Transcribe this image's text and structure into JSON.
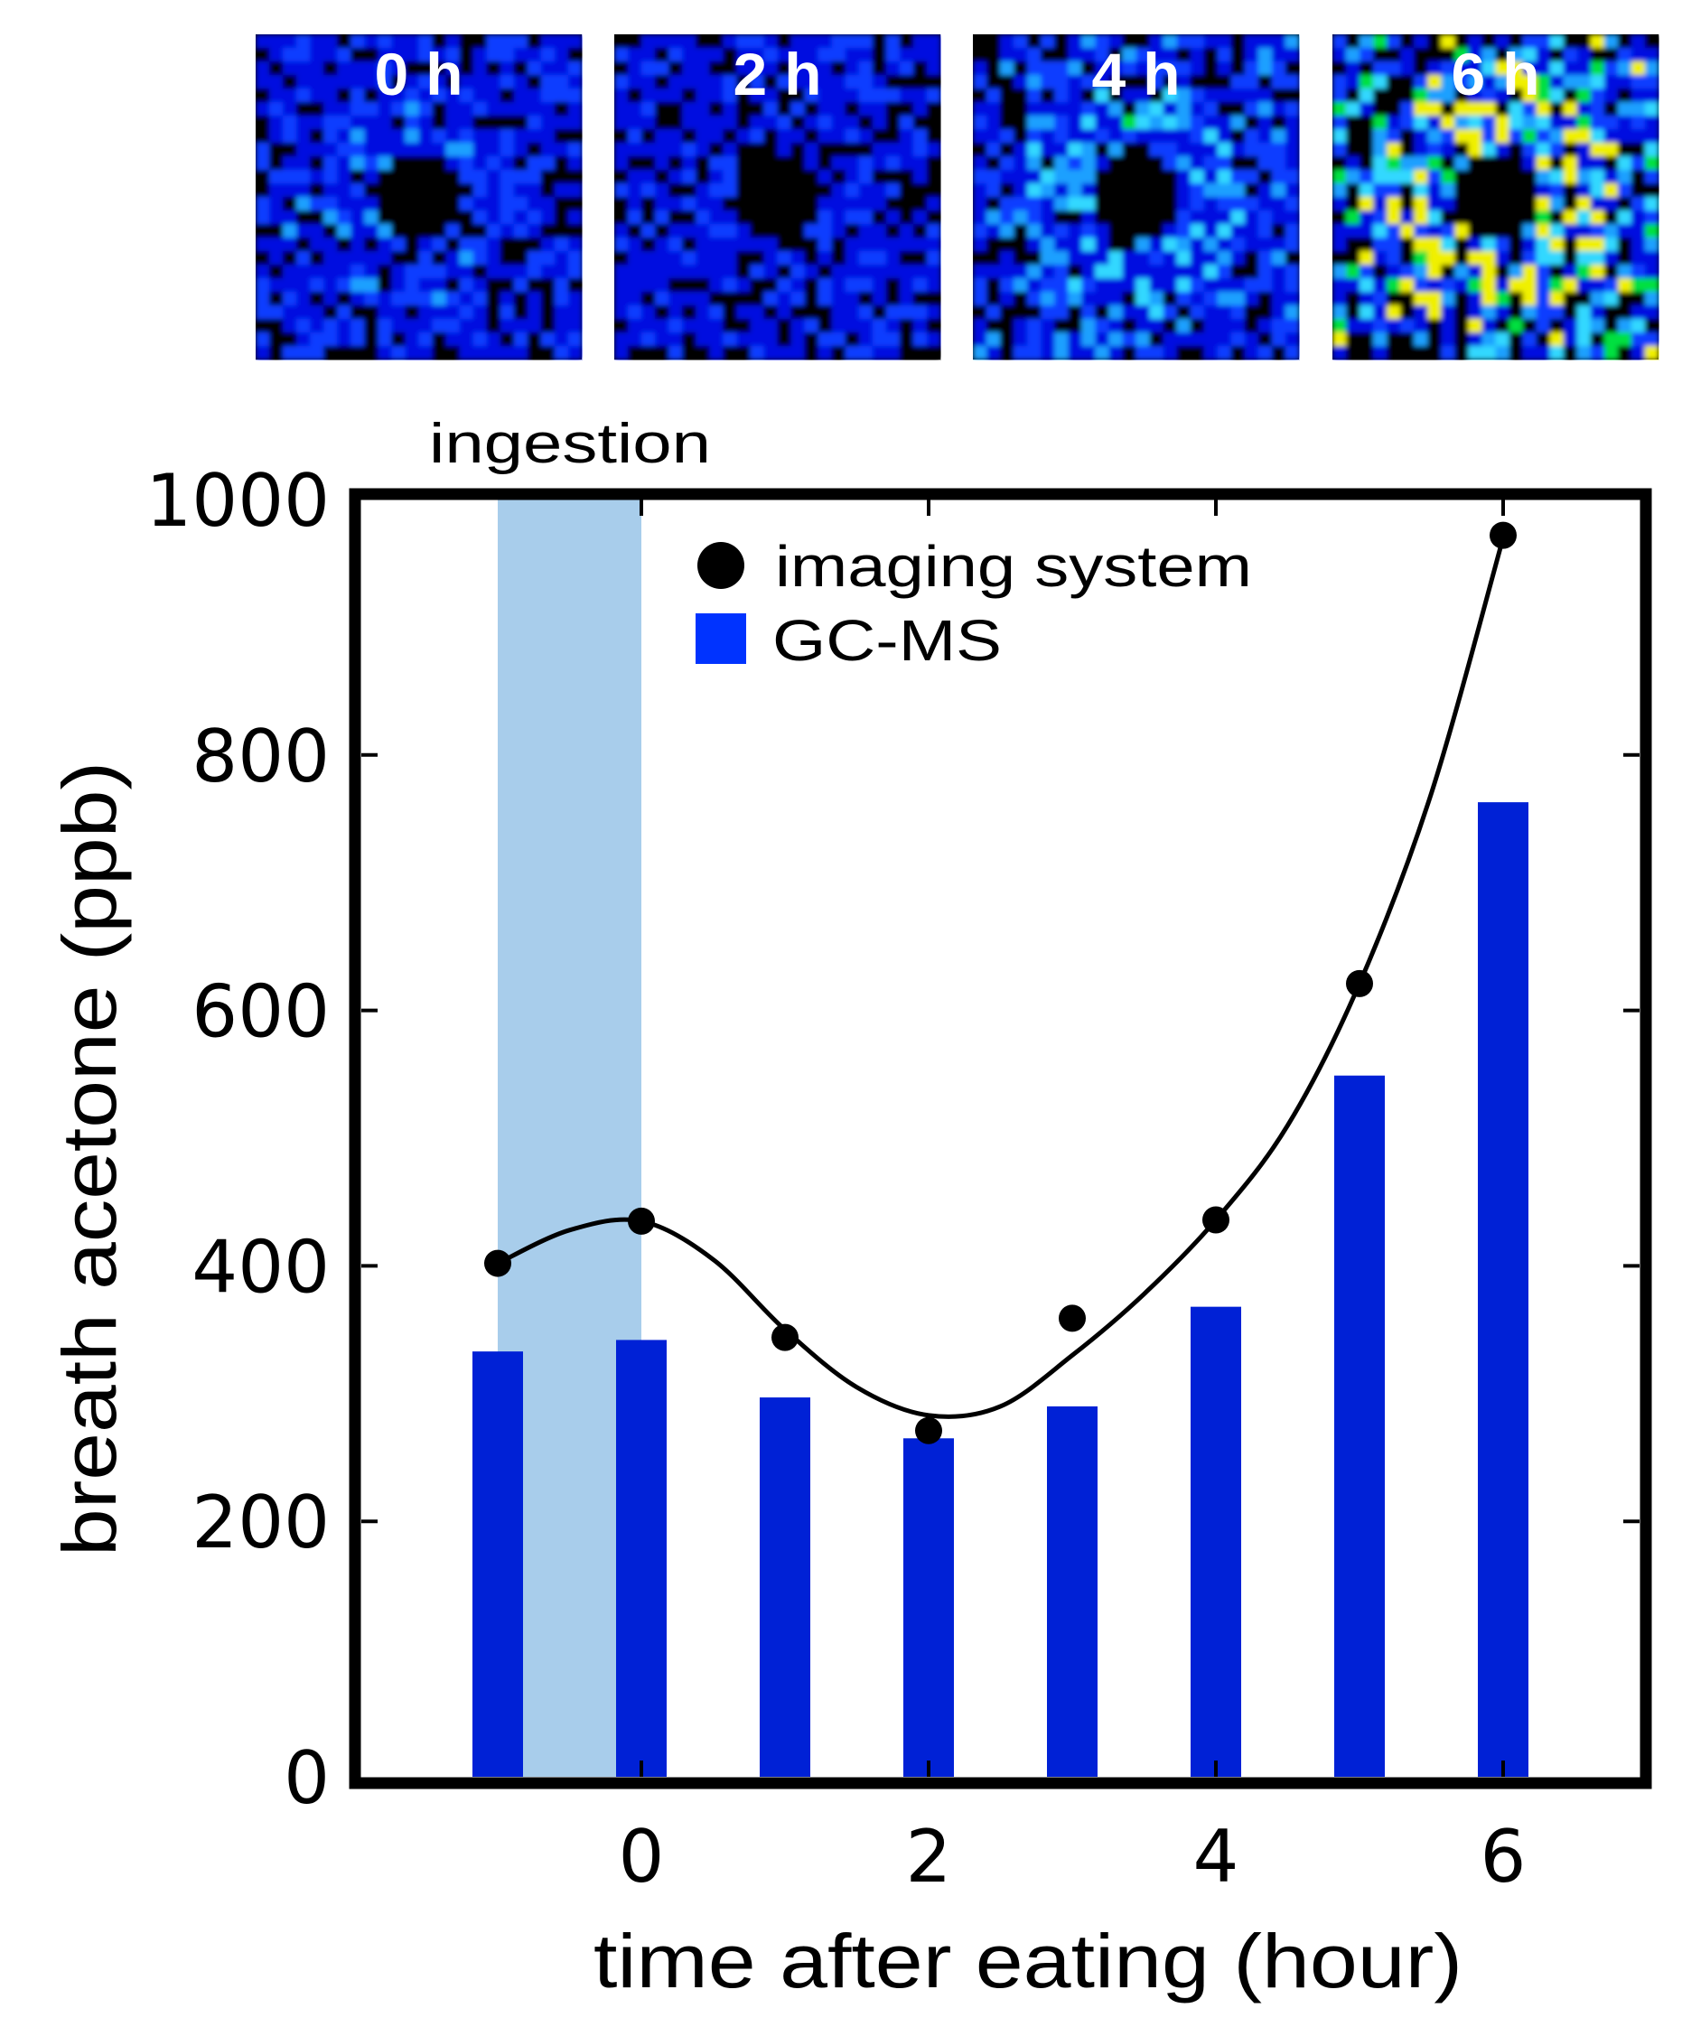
{
  "colors": {
    "bar": "#0021d6",
    "legend_square": "#0033ff",
    "shading": "#a8cdeb",
    "points": "#000000",
    "frame": "#000000"
  },
  "image_panels": [
    {
      "label": "0 h",
      "intensity": 0.25
    },
    {
      "label": "2 h",
      "intensity": 0.1
    },
    {
      "label": "4 h",
      "intensity": 0.45
    },
    {
      "label": "6 h",
      "intensity": 1.0
    }
  ],
  "chart_data": {
    "type": "bar",
    "title": "",
    "xlabel": "time after eating (hour)",
    "ylabel": "breath acetone (ppb)",
    "xlim": [
      -1.95,
      6.95
    ],
    "ylim": [
      0,
      1000
    ],
    "xticks": [
      0,
      2,
      4,
      6
    ],
    "xtick_labels": [
      "0",
      "2",
      "4",
      "6"
    ],
    "yticks": [
      0,
      200,
      400,
      600,
      800,
      1000
    ],
    "ytick_labels": [
      "0",
      "200",
      "400",
      "600",
      "800",
      "1000"
    ],
    "grid": false,
    "legend_position": "top-right",
    "annotation": {
      "text": "ingestion",
      "x_range": [
        -1,
        0
      ]
    },
    "x": [
      -1,
      0,
      1,
      2,
      3,
      4,
      5,
      6
    ],
    "series": [
      {
        "name": "imaging system",
        "type": "scatter",
        "values": [
          402,
          435,
          344,
          271,
          359,
          436,
          621,
          972
        ]
      },
      {
        "name": "GC-MS",
        "type": "bar",
        "values": [
          333,
          342,
          297,
          265,
          290,
          368,
          549,
          763
        ]
      }
    ],
    "fit_curve": {
      "series": "imaging system",
      "x": [
        -1,
        -0.5,
        0,
        0.5,
        1,
        1.5,
        2,
        2.5,
        3,
        3.5,
        4,
        4.5,
        5,
        5.5,
        6
      ],
      "y": [
        402,
        428,
        435,
        405,
        350,
        305,
        283,
        290,
        330,
        378,
        436,
        510,
        621,
        770,
        970
      ]
    }
  }
}
